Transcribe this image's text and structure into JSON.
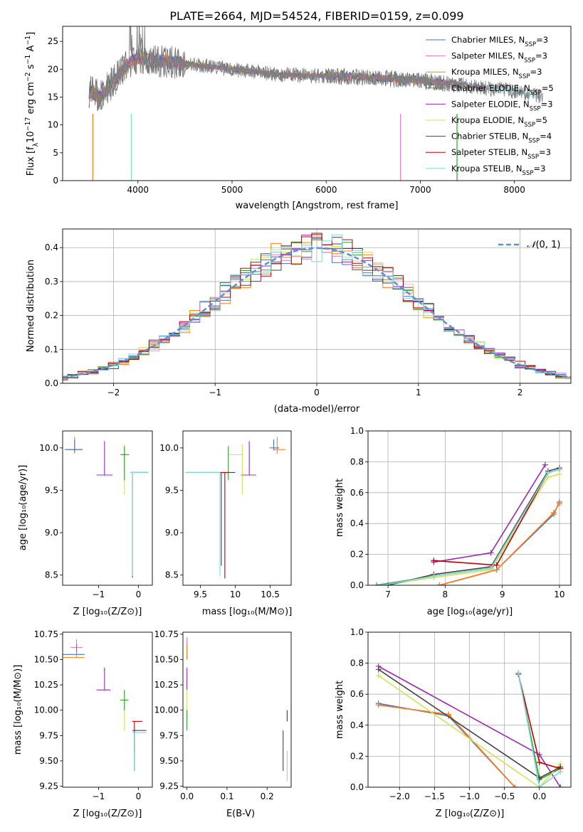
{
  "figure": {
    "title": "PLATE=2664, MJD=54524, FIBERID=0159, z=0.099",
    "model_colors": [
      "#4472c4",
      "#e377c2",
      "#ff7f0e",
      "#2ca02c",
      "#9c27b0",
      "#d4e157",
      "#444444",
      "#c00000",
      "#80d8e0"
    ],
    "legend_labels": [
      "Chabrier MILES, N",
      "Salpeter MILES, N",
      "Kroupa MILES, N",
      "Chabrier ELODIE, N",
      "Salpeter ELODIE, N",
      "Kroupa ELODIE, N",
      "Chabrier STELIB, N",
      "Salpeter STELIB, N",
      "Kroupa STELIB, N"
    ],
    "legend_sub": "SSP",
    "legend_vals": [
      "=3",
      "=3",
      "=3",
      "=5",
      "=3",
      "=5",
      "=4",
      "=3",
      "=3"
    ]
  },
  "chart_data": [
    {
      "type": "line",
      "panel": "spectrum",
      "title": "PLATE=2664, MJD=54524, FIBERID=0159, z=0.099",
      "xlabel": "wavelength [Angstrom, rest frame]",
      "ylabel": "Flux [f_λ 10^-17 erg cm^-2 s^-1 A^-1]",
      "xlim": [
        3200,
        8600
      ],
      "ylim": [
        0,
        27.7
      ],
      "xticks": [
        4000,
        5000,
        6000,
        7000,
        8000
      ],
      "yticks": [
        0,
        5,
        10,
        15,
        20,
        25
      ],
      "data_envelope": {
        "x": [
          3500,
          3600,
          3700,
          3800,
          3900,
          4000,
          4200,
          4500,
          5000,
          5500,
          6000,
          6500,
          7000,
          7500,
          8000,
          8300
        ],
        "y": [
          16.0,
          15.0,
          17.0,
          19.0,
          21.0,
          22.0,
          21.5,
          21.0,
          20.0,
          19.0,
          18.8,
          18.5,
          18.0,
          17.0,
          16.0,
          15.0
        ]
      },
      "grid": false,
      "legend": "top-right"
    },
    {
      "type": "line",
      "panel": "residual-distribution",
      "xlabel": "(data-model)/error",
      "ylabel": "Normed distribution",
      "xlim": [
        -2.5,
        2.5
      ],
      "ylim": [
        0,
        0.455
      ],
      "xticks": [
        -2,
        -1,
        0,
        1,
        2
      ],
      "yticks": [
        0.0,
        0.1,
        0.2,
        0.3,
        0.4
      ],
      "reference_curve": "N(0,1)",
      "grid": true,
      "legend": "top-right"
    },
    {
      "type": "scatter",
      "panel": "age-vs-Z",
      "xlabel": "Z [log10(Z/Z_sun)]",
      "ylabel": "age [log10(age/yr)]",
      "xlim": [
        -1.9,
        0.35
      ],
      "ylim": [
        8.38,
        10.2
      ],
      "xticks": [
        -1,
        0
      ],
      "yticks": [
        8.5,
        9.0,
        9.5,
        10.0
      ],
      "points": [
        {
          "x": -1.6,
          "y": 9.98,
          "model": 2
        },
        {
          "x": -1.6,
          "y": 9.98,
          "model": 0
        },
        {
          "x": -0.85,
          "y": 9.68,
          "model": 4
        },
        {
          "x": -0.35,
          "y": 9.92,
          "model": 5
        },
        {
          "x": -0.35,
          "y": 9.92,
          "model": 3
        },
        {
          "x": -0.15,
          "y": 9.71,
          "model": 6
        },
        {
          "x": -0.15,
          "y": 9.71,
          "model": 7
        },
        {
          "x": -0.15,
          "y": 9.71,
          "model": 8
        }
      ]
    },
    {
      "type": "scatter",
      "panel": "age-vs-mass",
      "xlabel": "mass [log10(M/M_sun)]",
      "ylabel": "",
      "xlim": [
        9.25,
        10.8
      ],
      "ylim": [
        8.38,
        10.2
      ],
      "xticks": [
        9.5,
        10.0,
        10.5
      ],
      "yticks": [
        8.5,
        9.0,
        9.5,
        10.0
      ],
      "points": [
        {
          "x": 10.6,
          "y": 9.98,
          "model": 2
        },
        {
          "x": 10.55,
          "y": 10.0,
          "model": 0
        },
        {
          "x": 10.2,
          "y": 9.68,
          "model": 4
        },
        {
          "x": 10.1,
          "y": 9.92,
          "model": 5
        },
        {
          "x": 9.9,
          "y": 9.92,
          "model": 3
        },
        {
          "x": 9.8,
          "y": 9.71,
          "model": 6
        },
        {
          "x": 9.85,
          "y": 9.71,
          "model": 7
        },
        {
          "x": 9.78,
          "y": 9.71,
          "model": 8
        }
      ]
    },
    {
      "type": "line",
      "panel": "mass-weight-vs-age",
      "xlabel": "age [log10(age/yr)]",
      "ylabel": "mass weight",
      "xlim": [
        6.65,
        10.2
      ],
      "ylim": [
        0,
        1
      ],
      "xticks": [
        7,
        8,
        9,
        10
      ],
      "yticks": [
        0.0,
        0.2,
        0.4,
        0.6,
        0.8,
        1.0
      ],
      "grid": true,
      "series": [
        {
          "model": 0,
          "x": [
            7.9,
            8.9,
            9.9,
            10.0
          ],
          "y": [
            0.0,
            0.1,
            0.46,
            0.54
          ]
        },
        {
          "model": 1,
          "x": [
            7.9,
            8.9,
            9.9,
            10.0
          ],
          "y": [
            0.0,
            0.1,
            0.47,
            0.53
          ]
        },
        {
          "model": 2,
          "x": [
            7.9,
            8.9,
            9.9,
            10.0
          ],
          "y": [
            0.0,
            0.1,
            0.47,
            0.53
          ]
        },
        {
          "model": 3,
          "x": [
            6.8,
            7.8,
            8.8,
            9.8,
            10.0
          ],
          "y": [
            0.0,
            0.06,
            0.11,
            0.73,
            0.75
          ]
        },
        {
          "model": 4,
          "x": [
            7.8,
            8.8,
            9.75
          ],
          "y": [
            0.15,
            0.21,
            0.78
          ]
        },
        {
          "model": 5,
          "x": [
            6.9,
            7.8,
            8.8,
            9.8,
            10.0
          ],
          "y": [
            0.0,
            0.05,
            0.1,
            0.7,
            0.72
          ]
        },
        {
          "model": 6,
          "x": [
            7.0,
            7.8,
            8.8,
            9.8,
            10.0
          ],
          "y": [
            0.0,
            0.07,
            0.12,
            0.74,
            0.76
          ]
        },
        {
          "model": 7,
          "x": [
            7.8,
            8.9,
            9.8
          ],
          "y": [
            0.16,
            0.13,
            0.73
          ]
        },
        {
          "model": 8,
          "x": [
            6.9,
            7.8,
            8.8,
            9.8,
            10.0
          ],
          "y": [
            0.0,
            0.06,
            0.11,
            0.73,
            0.75
          ]
        }
      ]
    },
    {
      "type": "scatter",
      "panel": "mass-vs-Z",
      "xlabel": "Z [log10(Z/Z_sun)]",
      "ylabel": "mass [log10(M/M_sun)]",
      "xlim": [
        -1.9,
        0.35
      ],
      "ylim": [
        9.24,
        10.77
      ],
      "xticks": [
        -1,
        0
      ],
      "yticks": [
        9.25,
        9.5,
        9.75,
        10.0,
        10.25,
        10.5,
        10.75
      ],
      "points": [
        {
          "x": -1.55,
          "y": 10.62,
          "model": 1
        },
        {
          "x": -1.55,
          "y": 10.55,
          "model": 0
        },
        {
          "x": -1.55,
          "y": 10.52,
          "model": 2
        },
        {
          "x": -0.85,
          "y": 10.2,
          "model": 4
        },
        {
          "x": -0.35,
          "y": 10.1,
          "model": 5
        },
        {
          "x": -0.35,
          "y": 10.1,
          "model": 3
        },
        {
          "x": -0.1,
          "y": 9.89,
          "model": 7
        },
        {
          "x": -0.1,
          "y": 9.8,
          "model": 6
        },
        {
          "x": -0.1,
          "y": 9.78,
          "model": 8
        }
      ]
    },
    {
      "type": "scatter",
      "panel": "mass-vs-ebv",
      "xlabel": "E(B-V)",
      "ylabel": "",
      "xlim": [
        -0.01,
        0.26
      ],
      "ylim": [
        9.24,
        10.77
      ],
      "xticks": [
        0.0,
        0.1,
        0.2
      ],
      "yticks": [
        9.25,
        9.5,
        9.75,
        10.0,
        10.25,
        10.5,
        10.75
      ],
      "points": [
        {
          "x": 0.0,
          "y": 10.6,
          "model": 1
        },
        {
          "x": 0.0,
          "y": 10.55,
          "model": 2
        },
        {
          "x": 0.0,
          "y": 10.2,
          "model": 4
        },
        {
          "x": 0.0,
          "y": 10.1,
          "model": 5
        },
        {
          "x": 0.0,
          "y": 9.9,
          "model": 3
        },
        {
          "x": 0.24,
          "y": 9.8,
          "model": 6
        },
        {
          "x": 0.25,
          "y": 9.89,
          "model": 7
        },
        {
          "x": 0.25,
          "y": 9.6,
          "model": 8
        }
      ]
    },
    {
      "type": "line",
      "panel": "mass-weight-vs-Z",
      "xlabel": "Z [log10(Z/Z_sun)]",
      "ylabel": "mass weight",
      "xlim": [
        -2.45,
        0.45
      ],
      "ylim": [
        0,
        1
      ],
      "xticks": [
        -2.0,
        -1.5,
        -1.0,
        -0.5,
        0.0
      ],
      "yticks": [
        0.0,
        0.2,
        0.4,
        0.6,
        0.8,
        1.0
      ],
      "grid": true,
      "series": [
        {
          "model": 0,
          "x": [
            -2.3,
            -1.3,
            -0.35
          ],
          "y": [
            0.54,
            0.46,
            0.0
          ]
        },
        {
          "model": 1,
          "x": [
            -2.3,
            -1.3,
            -0.35
          ],
          "y": [
            0.53,
            0.47,
            0.0
          ]
        },
        {
          "model": 2,
          "x": [
            -2.3,
            -1.3,
            -0.35
          ],
          "y": [
            0.53,
            0.47,
            0.0
          ]
        },
        {
          "model": 3,
          "x": [
            -0.3,
            0.0,
            0.3
          ],
          "y": [
            0.73,
            0.05,
            0.12
          ]
        },
        {
          "model": 4,
          "x": [
            -2.3,
            0.0,
            0.3
          ],
          "y": [
            0.78,
            0.21,
            0.0
          ]
        },
        {
          "model": 5,
          "x": [
            -2.3,
            0.0,
            0.3
          ],
          "y": [
            0.72,
            0.0,
            0.15
          ]
        },
        {
          "model": 6,
          "x": [
            -2.3,
            0.0,
            0.3
          ],
          "y": [
            0.76,
            0.06,
            0.13
          ]
        },
        {
          "model": 7,
          "x": [
            -0.3,
            0.0,
            0.3
          ],
          "y": [
            0.73,
            0.16,
            0.12
          ]
        },
        {
          "model": 8,
          "x": [
            -0.3,
            0.0,
            0.3
          ],
          "y": [
            0.74,
            0.0,
            0.1
          ]
        }
      ]
    }
  ]
}
